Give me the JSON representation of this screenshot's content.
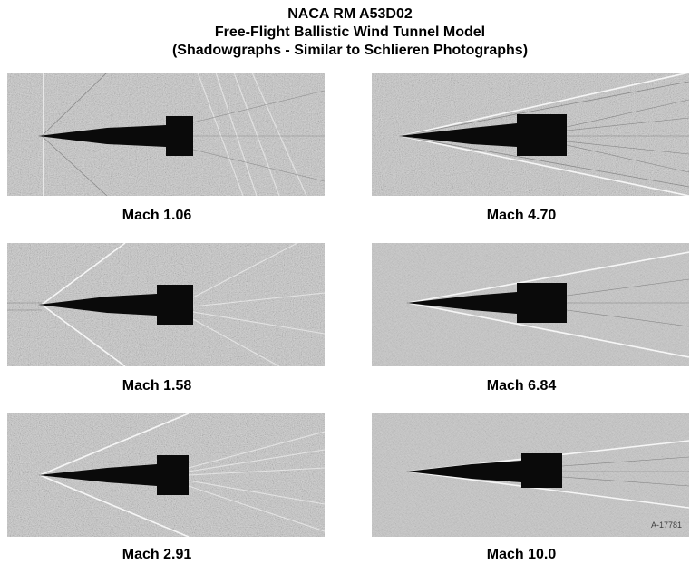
{
  "title": {
    "line1": "NACA RM A53D02",
    "line2": "Free-Flight Ballistic Wind Tunnel Model",
    "line3": "(Shadowgraphs - Similar to Schlieren Photographs)"
  },
  "photos": [
    {
      "caption": "Mach 1.06",
      "position": "left",
      "row": 1
    },
    {
      "caption": "Mach 4.70",
      "position": "right",
      "row": 1
    },
    {
      "caption": "Mach 1.58",
      "position": "left",
      "row": 2
    },
    {
      "caption": "Mach 6.84",
      "position": "right",
      "row": 2
    },
    {
      "caption": "Mach 2.91",
      "position": "left",
      "row": 3
    },
    {
      "caption": "Mach 10.0",
      "position": "right",
      "row": 3
    }
  ],
  "annotations": {
    "figure_number": "A-17781"
  }
}
